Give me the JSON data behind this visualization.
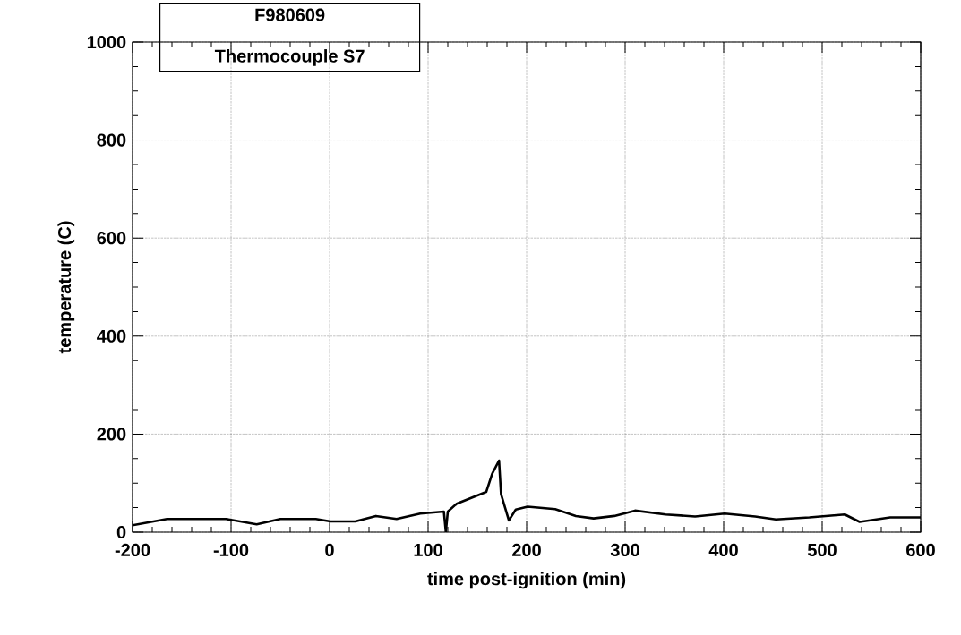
{
  "chart_data": {
    "type": "line",
    "title": "F980609",
    "subtitle": "Thermocouple S7",
    "xlabel": "time post-ignition (min)",
    "ylabel": "temperature (C)",
    "xlim": [
      -200,
      600
    ],
    "ylim": [
      0,
      1000
    ],
    "xticks": [
      -200,
      -100,
      0,
      100,
      200,
      300,
      400,
      500,
      600
    ],
    "yticks": [
      0,
      200,
      400,
      600,
      800,
      1000
    ],
    "grid": true,
    "marker": "none",
    "line_style": "solid",
    "series": [
      {
        "color": "#000000",
        "x": [
          -200,
          -165,
          -105,
          -74,
          -50,
          -14,
          1,
          26,
          47,
          68,
          92,
          116,
          118,
          120,
          129,
          159,
          165,
          172,
          174,
          182,
          189,
          201,
          229,
          250,
          268,
          289,
          310,
          341,
          371,
          401,
          432,
          453,
          487,
          523,
          538,
          569,
          600
        ],
        "values": [
          14,
          27,
          27,
          16,
          27,
          27,
          22,
          22,
          33,
          27,
          38,
          42,
          0,
          42,
          58,
          82,
          119,
          146,
          78,
          24,
          46,
          52,
          47,
          33,
          28,
          33,
          44,
          36,
          32,
          38,
          32,
          26,
          30,
          36,
          21,
          30,
          30
        ]
      }
    ]
  }
}
